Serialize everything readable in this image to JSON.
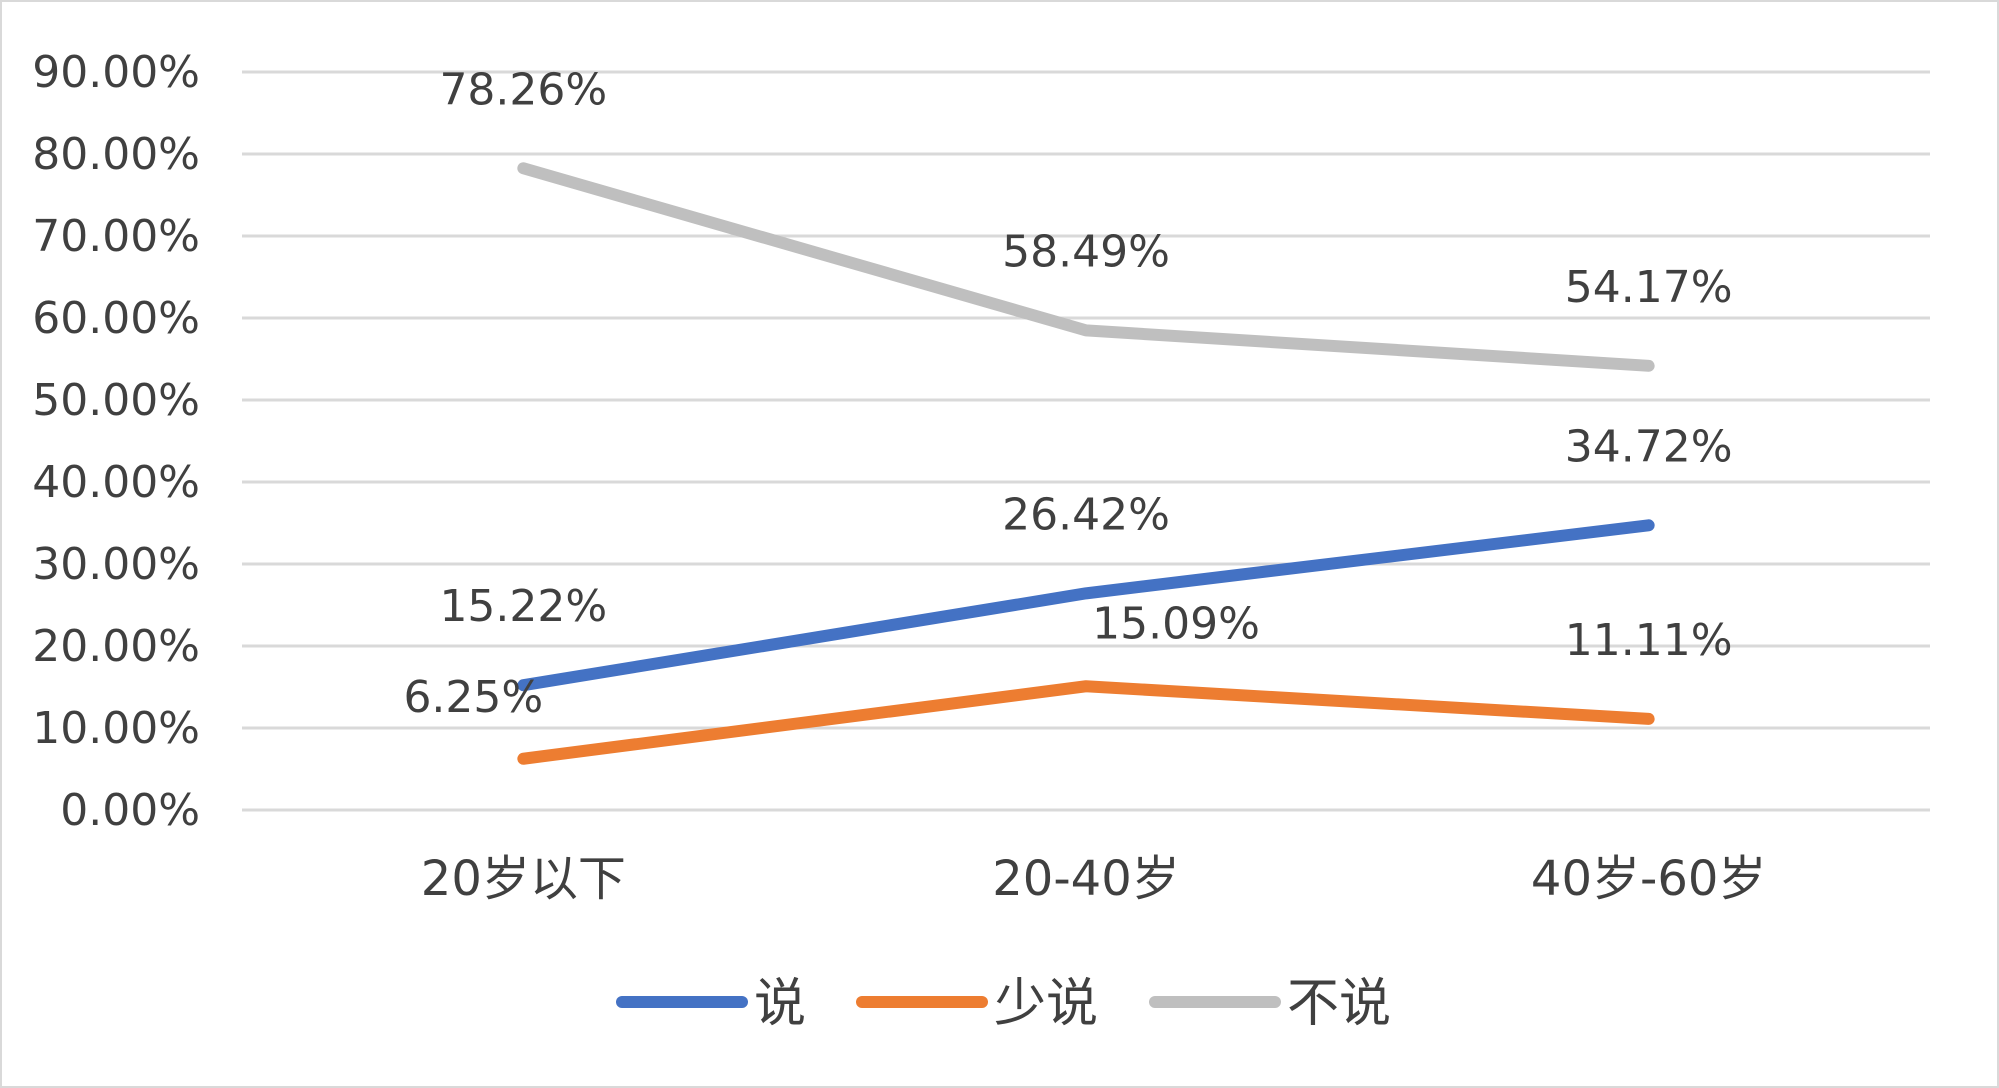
{
  "chart_data": {
    "type": "line",
    "categories": [
      "20岁以下",
      "20-40岁",
      "40岁-60岁"
    ],
    "series": [
      {
        "name": "说",
        "values": [
          15.22,
          26.42,
          34.72
        ],
        "labels": [
          "15.22%",
          "26.42%",
          "34.72%"
        ],
        "color": "#4472C4"
      },
      {
        "name": "少说",
        "values": [
          6.25,
          15.09,
          11.11
        ],
        "labels": [
          "6.25%",
          "15.09%",
          "11.11%"
        ],
        "color": "#ED7D31"
      },
      {
        "name": "不说",
        "values": [
          78.26,
          58.49,
          54.17
        ],
        "labels": [
          "78.26%",
          "58.49%",
          "54.17%"
        ],
        "color": "#BFBFBF"
      }
    ],
    "yticks": [
      "0.00%",
      "10.00%",
      "20.00%",
      "30.00%",
      "40.00%",
      "50.00%",
      "60.00%",
      "70.00%",
      "80.00%",
      "90.00%"
    ],
    "ylim": [
      0,
      90
    ],
    "grid": true,
    "legend": "bottom"
  }
}
